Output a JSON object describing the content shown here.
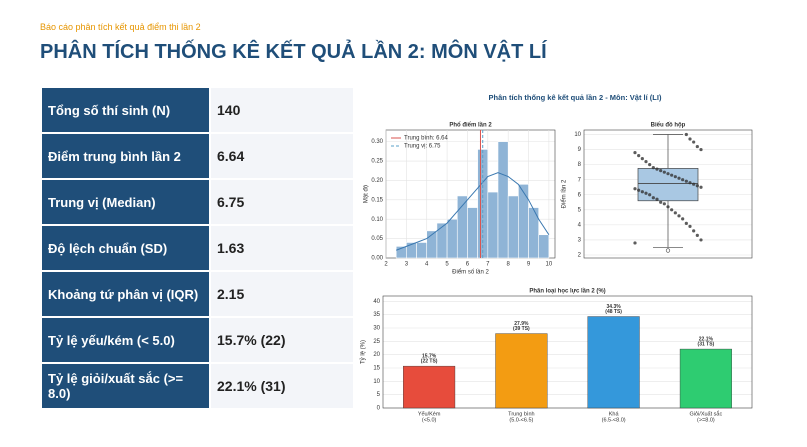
{
  "header": {
    "subtitle": "Báo cáo phân tích kết quả điểm thi lần 2",
    "title": "PHÂN TÍCH THỐNG KÊ KẾT QUẢ LẦN 2: MÔN VẬT LÍ"
  },
  "table": {
    "rows": [
      [
        "Tổng số thí sinh (N)",
        "140"
      ],
      [
        "Điểm trung bình lần 2",
        "6.64"
      ],
      [
        "Trung vị (Median)",
        "6.75"
      ],
      [
        "Độ lệch chuẩn (SD)",
        "1.63"
      ],
      [
        "Khoảng tứ phân vị (IQR)",
        "2.15"
      ],
      [
        "Tỷ lệ yếu/kém (< 5.0)",
        "15.7% (22)"
      ],
      [
        "Tỷ lệ giỏi/xuất sắc (>= 8.0)",
        "22.1% (31)"
      ]
    ]
  },
  "figure_title": "Phân tích thống kê kết quả lần 2 - Môn: Vật lí (LI)",
  "chart_data": [
    {
      "type": "histogram",
      "title": "Phổ điểm lần 2",
      "xlabel": "Điểm số lần 2",
      "ylabel": "Mật độ",
      "color": "#8fb4d6",
      "bins": [
        2.5,
        3,
        3.5,
        4,
        4.5,
        5,
        5.5,
        6,
        6.5,
        7,
        7.5,
        8,
        8.5,
        9,
        9.5,
        10
      ],
      "values": [
        0.03,
        0.04,
        0.04,
        0.07,
        0.09,
        0.1,
        0.16,
        0.13,
        0.28,
        0.17,
        0.3,
        0.16,
        0.19,
        0.13,
        0.06
      ],
      "kde": {
        "color": "#3a78b0",
        "x": [
          2.5,
          3,
          3.5,
          4,
          4.5,
          5,
          5.5,
          6,
          6.5,
          7,
          7.5,
          8,
          8.5,
          9,
          9.5,
          10
        ],
        "values": [
          0.02,
          0.03,
          0.04,
          0.05,
          0.07,
          0.09,
          0.12,
          0.15,
          0.18,
          0.21,
          0.22,
          0.21,
          0.19,
          0.15,
          0.1,
          0.06
        ]
      },
      "vlines": [
        {
          "label": "Trung bình: 6.64",
          "value": 6.64,
          "color": "#d9534f",
          "dashed": false
        },
        {
          "label": "Trung vị: 6.75",
          "value": 6.75,
          "color": "#5aa0c8",
          "dashed": true
        }
      ],
      "legend": "upper left",
      "grid": true,
      "xlim": [
        2,
        10.3
      ],
      "xticks": [
        2,
        3,
        4,
        5,
        6,
        7,
        8,
        9,
        10
      ],
      "ylim": [
        0,
        0.33
      ],
      "yticks": [
        {
          "value": 0,
          "label": "0.00"
        },
        {
          "value": 0.05,
          "label": "0.05"
        },
        {
          "value": 0.1,
          "label": "0.10"
        },
        {
          "value": 0.15,
          "label": "0.15"
        },
        {
          "value": 0.2,
          "label": "0.20"
        },
        {
          "value": 0.25,
          "label": "0.25"
        },
        {
          "value": 0.3,
          "label": "0.30"
        }
      ]
    },
    {
      "type": "box",
      "title": "Biểu đồ hộp",
      "ylabel": "Điểm lần 2",
      "color": "#a9c8e3",
      "grid": true,
      "whislo": 2.5,
      "q1": 5.6,
      "median": 6.75,
      "q3": 7.75,
      "whishi": 10,
      "fliers": [
        2.3
      ],
      "points": [
        2.8,
        3.0,
        3.3,
        3.6,
        3.9,
        4.1,
        4.4,
        4.6,
        4.8,
        5.0,
        5.2,
        5.4,
        5.5,
        5.7,
        5.8,
        6.0,
        6.1,
        6.2,
        6.3,
        6.4,
        6.5,
        6.6,
        6.7,
        6.8,
        6.9,
        7.0,
        7.1,
        7.2,
        7.3,
        7.4,
        7.5,
        7.6,
        7.7,
        7.8,
        8.0,
        8.2,
        8.4,
        8.6,
        8.8,
        9.0,
        9.2,
        9.5,
        9.7,
        10.0
      ],
      "ylim": [
        1.8,
        10.3
      ],
      "yticks": [
        2,
        3,
        4,
        5,
        6,
        7,
        8,
        9,
        10
      ]
    },
    {
      "type": "bar",
      "title": "Phân loại học lực lần 2 (%)",
      "ylabel": "Tỷ lệ (%)",
      "grid": true,
      "categories": [
        [
          "Yếu/Kém",
          "(<5.0)"
        ],
        [
          "Trung bình",
          "(5.0-<6.5)"
        ],
        [
          "Khá",
          "(6.5-<8.0)"
        ],
        [
          "Giỏi/Xuất sắc",
          "(>=8.0)"
        ]
      ],
      "values": [
        15.7,
        27.9,
        34.3,
        22.1
      ],
      "value_labels": [
        [
          "15.7%",
          "(22 TS)"
        ],
        [
          "27.9%",
          "(39 TS)"
        ],
        [
          "34.3%",
          "(48 TS)"
        ],
        [
          "22.1%",
          "(31 TS)"
        ]
      ],
      "colors": [
        "#e74c3c",
        "#f39c12",
        "#3498db",
        "#2ecc71"
      ],
      "ylim": [
        0,
        42
      ],
      "yticks": [
        0,
        5,
        10,
        15,
        20,
        25,
        30,
        35,
        40
      ]
    }
  ]
}
